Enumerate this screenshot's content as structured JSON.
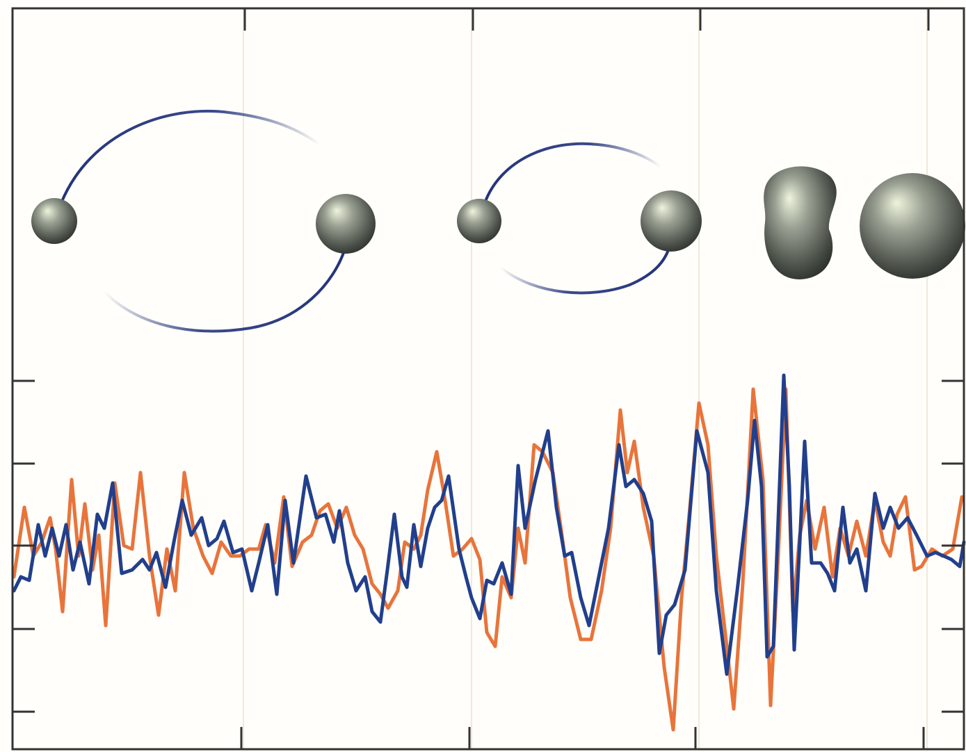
{
  "chart_data": {
    "type": "line",
    "xlim": [
      0,
      1368
    ],
    "ylim": [
      -293,
      773
    ],
    "series": [
      {
        "color": "#e8743b",
        "x": [
          2,
          17,
          30,
          42,
          54,
          62,
          72,
          85,
          95,
          104,
          115,
          124,
          134,
          147,
          160,
          172,
          184,
          197,
          210,
          222,
          234,
          247,
          260,
          274,
          287,
          300,
          314,
          327,
          340,
          354,
          364,
          377,
          390,
          402,
          417,
          430,
          442,
          454,
          467,
          480,
          492,
          504,
          517,
          529,
          540,
          554,
          564,
          577,
          587,
          597,
          610,
          622,
          634,
          647,
          660,
          672,
          682,
          694,
          704,
          717,
          727,
          737,
          750,
          762,
          777,
          790,
          802,
          817,
          832,
          847,
          860,
          874,
          884,
          894,
          907,
          922,
          937,
          950,
          962,
          974,
          987,
          1000,
          1012,
          1027,
          1037,
          1050,
          1065,
          1079,
          1090,
          1100,
          1112,
          1122,
          1132,
          1142,
          1154,
          1167,
          1179,
          1190,
          1202,
          1214,
          1227,
          1240,
          1252,
          1262,
          1272,
          1284,
          1297,
          1307,
          1322,
          1337,
          1352,
          1365
        ],
        "values": [
          -45,
          55,
          -15,
          5,
          40,
          -5,
          -95,
          95,
          -15,
          60,
          -35,
          15,
          -115,
          90,
          0,
          -5,
          105,
          -15,
          -100,
          -5,
          -65,
          105,
          25,
          -15,
          -40,
          5,
          -15,
          -15,
          -5,
          -5,
          30,
          -25,
          70,
          -30,
          5,
          15,
          50,
          60,
          25,
          55,
          15,
          -5,
          -55,
          -70,
          -90,
          -65,
          5,
          -5,
          15,
          80,
          135,
          65,
          -15,
          -5,
          10,
          -20,
          -125,
          -145,
          -45,
          -75,
          25,
          -25,
          145,
          135,
          105,
          15,
          -75,
          -135,
          -135,
          -65,
          25,
          195,
          105,
          150,
          55,
          -15,
          -175,
          -265,
          -75,
          55,
          205,
          145,
          -15,
          -145,
          -235,
          -55,
          225,
          95,
          -230,
          -35,
          225,
          -95,
          15,
          65,
          -5,
          55,
          -45,
          25,
          -15,
          35,
          -15,
          65,
          5,
          -15,
          45,
          70,
          -35,
          -30,
          -5,
          -15,
          -5,
          70
        ]
      },
      {
        "color": "#213f8c",
        "x": [
          2,
          12,
          24,
          37,
          47,
          57,
          67,
          77,
          87,
          97,
          110,
          122,
          132,
          144,
          157,
          172,
          187,
          197,
          207,
          220,
          232,
          244,
          257,
          272,
          282,
          294,
          304,
          317,
          330,
          344,
          354,
          367,
          380,
          392,
          404,
          422,
          437,
          450,
          462,
          470,
          482,
          494,
          507,
          517,
          529,
          539,
          549,
          560,
          567,
          577,
          587,
          597,
          607,
          617,
          627,
          642,
          652,
          660,
          672,
          682,
          692,
          704,
          717,
          727,
          737,
          752,
          770,
          782,
          794,
          804,
          817,
          829,
          842,
          857,
          872,
          882,
          894,
          907,
          919,
          930,
          940,
          952,
          967,
          984,
          1000,
          1012,
          1027,
          1042,
          1057,
          1067,
          1077,
          1085,
          1094,
          1109,
          1117,
          1124,
          1132,
          1139,
          1149,
          1162,
          1172,
          1182,
          1194,
          1204,
          1214,
          1227,
          1240,
          1252,
          1262,
          1274,
          1287,
          1300,
          1315,
          1327,
          1339,
          1350,
          1362,
          1368
        ],
        "values": [
          -65,
          -45,
          -50,
          30,
          -15,
          25,
          -15,
          30,
          -35,
          5,
          -55,
          45,
          25,
          90,
          -40,
          -35,
          -20,
          -35,
          -10,
          -60,
          5,
          65,
          15,
          40,
          0,
          10,
          35,
          -10,
          -5,
          -65,
          -25,
          30,
          -70,
          65,
          -25,
          100,
          40,
          45,
          5,
          50,
          -25,
          -65,
          -45,
          -95,
          -110,
          -35,
          45,
          -45,
          -60,
          30,
          -30,
          25,
          55,
          65,
          100,
          -5,
          -45,
          -75,
          -105,
          -50,
          -55,
          -25,
          -70,
          115,
          25,
          95,
          165,
          55,
          -15,
          -10,
          -75,
          -115,
          -50,
          25,
          145,
          85,
          95,
          75,
          35,
          -155,
          -100,
          -85,
          -35,
          165,
          105,
          -65,
          -185,
          -65,
          65,
          180,
          85,
          -160,
          -145,
          245,
          85,
          -150,
          5,
          150,
          -25,
          -25,
          -40,
          -65,
          55,
          -25,
          -5,
          -65,
          75,
          25,
          55,
          25,
          40,
          15,
          -15,
          -10,
          -15,
          -20,
          -30,
          5
        ]
      }
    ]
  }
}
